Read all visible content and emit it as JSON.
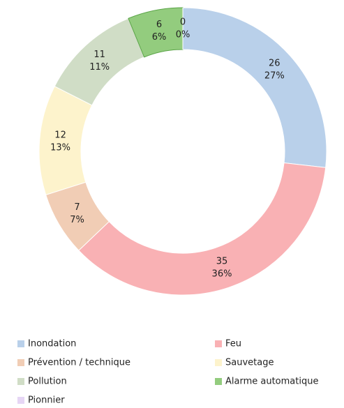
{
  "chart_data": {
    "type": "donut",
    "categories": [
      "Inondation",
      "Feu",
      "Prévention / technique",
      "Sauvetage",
      "Pollution",
      "Alarme automatique",
      "Pionnier"
    ],
    "values": [
      26,
      35,
      7,
      12,
      11,
      6,
      0
    ],
    "percentages": [
      "27%",
      "36%",
      "7%",
      "13%",
      "11%",
      "6%",
      "0%"
    ],
    "colors": [
      "#b9d0ea",
      "#f9b1b4",
      "#f1cdb5",
      "#fdf3cc",
      "#d0ddc6",
      "#93cc7e",
      "#e6d6f5"
    ],
    "legend": "bottom"
  }
}
